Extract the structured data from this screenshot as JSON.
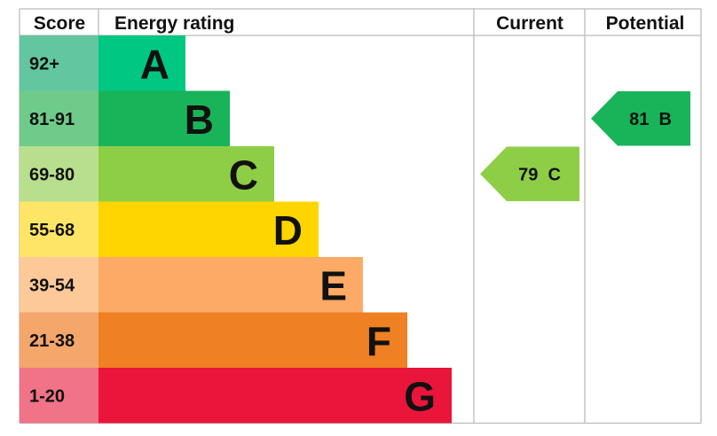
{
  "chart_data": {
    "type": "bar",
    "headers": {
      "score": "Score",
      "rating": "Energy rating",
      "current": "Current",
      "potential": "Potential"
    },
    "bands": [
      {
        "letter": "A",
        "range": "92+",
        "color": "#00c781",
        "score_color": "#62c6a1"
      },
      {
        "letter": "B",
        "range": "81-91",
        "color": "#19b459",
        "score_color": "#6fcb8a"
      },
      {
        "letter": "C",
        "range": "69-80",
        "color": "#8dce46",
        "score_color": "#b8df8d"
      },
      {
        "letter": "D",
        "range": "55-68",
        "color": "#ffd500",
        "score_color": "#ffe566"
      },
      {
        "letter": "E",
        "range": "39-54",
        "color": "#fcaa65",
        "score_color": "#fdc998"
      },
      {
        "letter": "F",
        "range": "21-38",
        "color": "#ef8023",
        "score_color": "#f4a66b"
      },
      {
        "letter": "G",
        "range": "1-20",
        "color": "#e9153b",
        "score_color": "#f07387"
      }
    ],
    "current": {
      "value": 79,
      "letter": "C",
      "label": "79  C",
      "color": "#8dce46"
    },
    "potential": {
      "value": 81,
      "letter": "B",
      "label": "81  B",
      "color": "#19b459"
    }
  }
}
